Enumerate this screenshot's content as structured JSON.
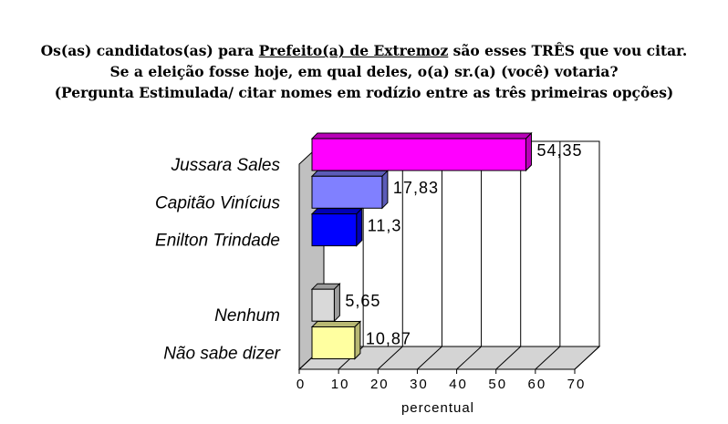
{
  "chart_data": {
    "type": "bar3d",
    "title": [
      [
        "Os(as) candidatos(as) para",
        "Prefeito(a) de Extremoz",
        "são esses TRÊS que vou citar."
      ],
      "Se a eleição fosse hoje, em qual deles, o(a) sr.(a) (você) votaria?",
      "(Pergunta Estimulada/ citar nomes em rodízio entre as três primeiras opções)"
    ],
    "categories": [
      "Jussara Sales",
      "Capitão Vinícius",
      "Enilton Trindade",
      null,
      "Nenhum",
      "Não sabe dizer"
    ],
    "values": [
      54.35,
      17.83,
      11.3,
      null,
      5.65,
      10.87
    ],
    "value_labels": [
      "54,35",
      "17,83",
      "11,3",
      null,
      "5,65",
      "10,87"
    ],
    "colors": [
      "#ff00ff",
      "#8080ff",
      "#0000ff",
      null,
      "#d9d9d9",
      "#ffffa0"
    ],
    "xlabel": "percentual",
    "xlim": [
      0,
      70
    ],
    "xticks": [
      0,
      10,
      20,
      30,
      40,
      50,
      60,
      70
    ],
    "grid": true
  }
}
